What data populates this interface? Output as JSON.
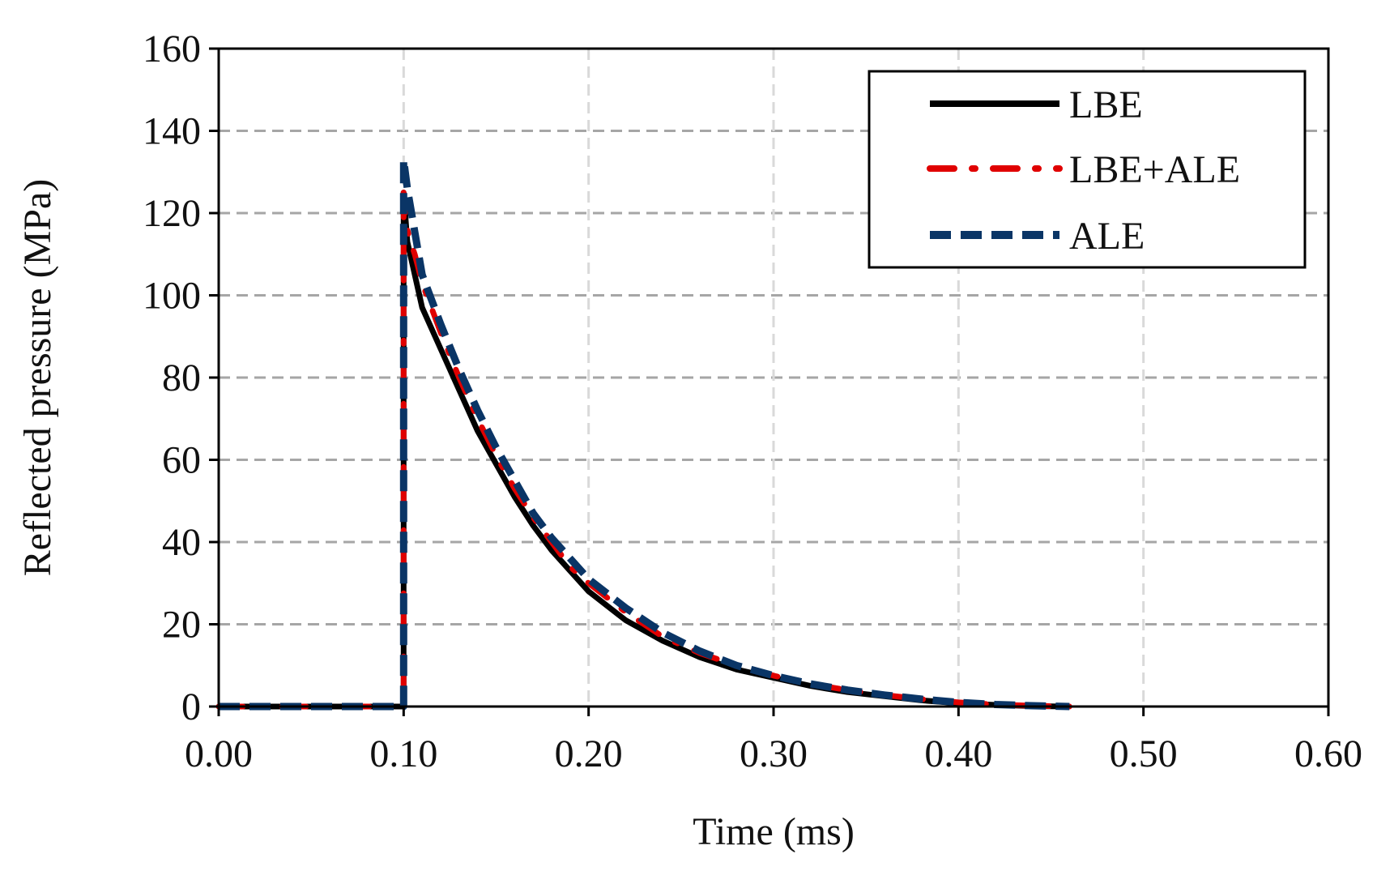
{
  "chart_data": {
    "type": "line",
    "title": "",
    "xlabel": "Time (ms)",
    "ylabel": "Reflected pressure (MPa)",
    "xlim": [
      0,
      0.6
    ],
    "ylim": [
      0,
      160
    ],
    "x_ticks": [
      "0.00",
      "0.10",
      "0.20",
      "0.30",
      "0.40",
      "0.50",
      "0.60"
    ],
    "y_ticks": [
      "0",
      "20",
      "40",
      "60",
      "80",
      "100",
      "120",
      "140",
      "160"
    ],
    "grid": true,
    "legend_position": "top-right",
    "series": [
      {
        "name": "LBE",
        "color": "#000000",
        "style": "solid",
        "x": [
          0,
          0.1,
          0.1,
          0.102,
          0.105,
          0.11,
          0.12,
          0.13,
          0.14,
          0.15,
          0.16,
          0.17,
          0.18,
          0.19,
          0.2,
          0.22,
          0.24,
          0.26,
          0.28,
          0.3,
          0.32,
          0.34,
          0.36,
          0.38,
          0.4,
          0.42,
          0.44,
          0.46
        ],
        "y": [
          0,
          0,
          125,
          113,
          107,
          97,
          87,
          77,
          67,
          59,
          51,
          44,
          38,
          33,
          28,
          21,
          16,
          12,
          9,
          7,
          5,
          3.5,
          2.5,
          1.5,
          0.8,
          0.4,
          0.1,
          0
        ]
      },
      {
        "name": "LBE+ALE",
        "color": "#e00000",
        "style": "dash-dot",
        "x": [
          0,
          0.1,
          0.1,
          0.101,
          0.103,
          0.106,
          0.11,
          0.12,
          0.13,
          0.14,
          0.15,
          0.16,
          0.17,
          0.18,
          0.19,
          0.2,
          0.22,
          0.24,
          0.26,
          0.28,
          0.3,
          0.32,
          0.34,
          0.36,
          0.38,
          0.4,
          0.42,
          0.44,
          0.46
        ],
        "y": [
          0,
          0,
          125,
          118,
          114,
          110,
          103,
          91,
          80,
          70,
          61,
          53,
          46,
          40,
          34,
          30,
          23,
          17,
          13,
          10,
          7.5,
          5.5,
          4,
          2.8,
          1.8,
          1,
          0.5,
          0.2,
          0
        ]
      },
      {
        "name": "ALE",
        "color": "#0a3566",
        "style": "dashed",
        "x": [
          0,
          0.1,
          0.1,
          0.102,
          0.105,
          0.11,
          0.12,
          0.13,
          0.14,
          0.15,
          0.16,
          0.17,
          0.18,
          0.19,
          0.2,
          0.22,
          0.24,
          0.26,
          0.28,
          0.3,
          0.32,
          0.34,
          0.36,
          0.38,
          0.4,
          0.42,
          0.44,
          0.46
        ],
        "y": [
          0,
          0,
          133,
          126,
          118,
          105,
          93,
          82,
          72,
          63,
          55,
          47,
          41,
          36,
          31,
          24,
          18,
          13.5,
          10,
          7.5,
          5.5,
          4,
          2.8,
          1.8,
          1,
          0.5,
          0.2,
          0
        ]
      }
    ]
  }
}
